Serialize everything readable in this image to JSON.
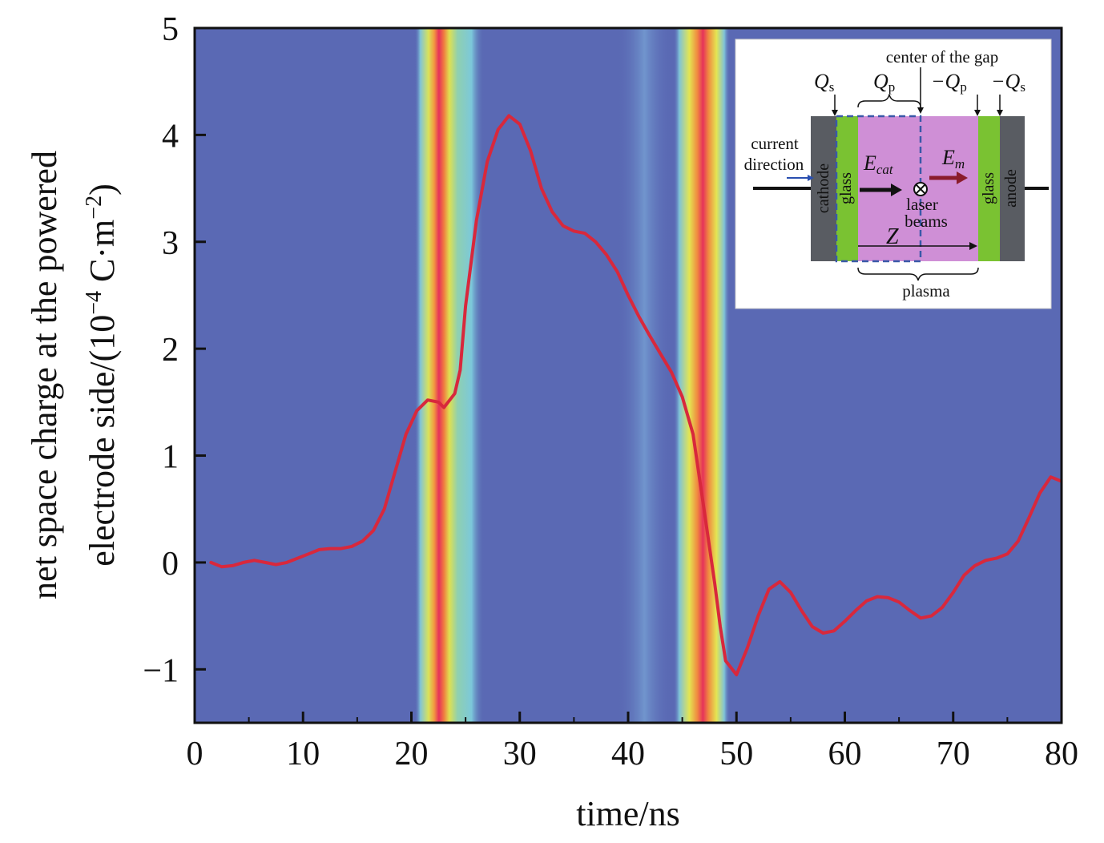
{
  "chart_data": {
    "type": "line",
    "xlabel": "time/ns",
    "ylabel_line1": "net space charge at the powered",
    "ylabel_line2": "electrode side/(10",
    "ylabel_exp": "−4",
    "ylabel_unit": " C·m",
    "ylabel_unit_exp": "−2",
    "ylabel_close": ")",
    "xlim": [
      0,
      80
    ],
    "ylim": [
      -1.5,
      5
    ],
    "xticks": [
      0,
      10,
      20,
      30,
      40,
      50,
      60,
      70,
      80
    ],
    "xtick_labels": [
      "0",
      "10",
      "20",
      "30",
      "40",
      "50",
      "60",
      "70",
      "80"
    ],
    "yticks": [
      -1,
      0,
      1,
      2,
      3,
      4,
      5
    ],
    "ytick_labels": [
      "−1",
      "0",
      "1",
      "2",
      "3",
      "4",
      "5"
    ],
    "series": [
      {
        "name": "net space charge",
        "color": "#d8283c",
        "x": [
          1.5,
          2.5,
          3.5,
          4.5,
          5.5,
          6.5,
          7.5,
          8.5,
          9.5,
          10.5,
          11.5,
          12.5,
          13.5,
          14.5,
          15.5,
          16.5,
          17.5,
          18.5,
          19.5,
          20.5,
          21.5,
          22.5,
          23,
          24,
          24.5,
          25,
          26,
          27,
          28,
          29,
          30,
          31,
          32,
          33,
          34,
          35,
          36,
          37,
          38,
          39,
          40,
          41,
          42,
          43,
          44,
          45,
          46,
          47,
          48,
          48.5,
          49,
          50,
          51,
          52,
          53,
          54,
          55,
          56,
          57,
          58,
          59,
          60,
          61,
          62,
          63,
          64,
          65,
          66,
          67,
          68,
          69,
          70,
          71,
          72,
          73,
          74,
          75,
          76,
          77,
          78,
          79,
          80
        ],
        "y": [
          0.0,
          -0.04,
          -0.03,
          0.0,
          0.02,
          0.0,
          -0.02,
          0.0,
          0.04,
          0.08,
          0.12,
          0.13,
          0.13,
          0.15,
          0.2,
          0.3,
          0.5,
          0.85,
          1.2,
          1.42,
          1.52,
          1.5,
          1.45,
          1.58,
          1.8,
          2.4,
          3.2,
          3.75,
          4.05,
          4.18,
          4.1,
          3.85,
          3.5,
          3.28,
          3.15,
          3.1,
          3.08,
          3.0,
          2.88,
          2.72,
          2.5,
          2.3,
          2.12,
          1.95,
          1.78,
          1.55,
          1.2,
          0.5,
          -0.2,
          -0.6,
          -0.92,
          -1.05,
          -0.8,
          -0.5,
          -0.25,
          -0.18,
          -0.28,
          -0.45,
          -0.6,
          -0.66,
          -0.64,
          -0.55,
          -0.45,
          -0.36,
          -0.32,
          -0.33,
          -0.37,
          -0.45,
          -0.52,
          -0.5,
          -0.42,
          -0.28,
          -0.12,
          -0.03,
          0.02,
          0.04,
          0.08,
          0.2,
          0.42,
          0.65,
          0.8,
          0.76
        ]
      }
    ],
    "background_bands": [
      {
        "name": "first discharge band",
        "center": 23.5,
        "halfwidth": 3.2
      },
      {
        "name": "second discharge band",
        "center": 46.8,
        "halfwidth": 2.6
      },
      {
        "name": "faint band",
        "center": 41.5,
        "halfwidth": 2.5
      }
    ],
    "colors": {
      "background": "#5a69b4",
      "band_cyan": "#78c6dc",
      "band_yellow": "#f0e246",
      "band_red": "#e6325a",
      "line": "#d8283c"
    }
  },
  "inset": {
    "center_label": "center of the gap",
    "qs_label": "Q",
    "qs_sub": "s",
    "qp_label": "Q",
    "qp_sub": "p",
    "neg_qp_label": "−Q",
    "neg_qp_sub": "p",
    "neg_qs_label": "−Q",
    "neg_qs_sub": "s",
    "current_label_1": "current",
    "current_label_2": "direction",
    "cathode_label": "cathode",
    "glass_left_label": "glass",
    "glass_right_label": "glass",
    "anode_label": "anode",
    "ecat_label": "E",
    "ecat_sub": "cat",
    "em_label": "E",
    "em_sub": "m",
    "laser_label_1": "laser",
    "laser_label_2": "beams",
    "z_label": "Z",
    "plasma_label": "plasma"
  }
}
